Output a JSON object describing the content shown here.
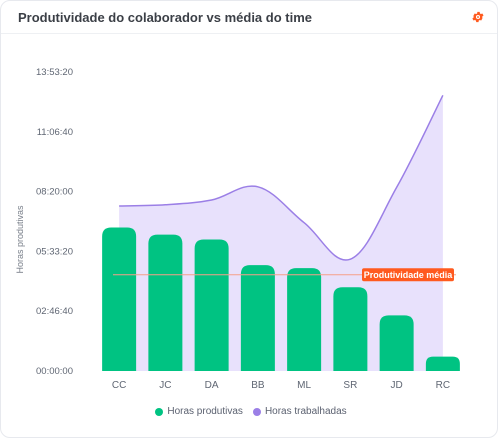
{
  "header": {
    "title": "Produtividade do colaborador vs média do time",
    "settings_icon": "gear-icon"
  },
  "colors": {
    "productive": "#00c382",
    "worked_fill": "#e4dcfb",
    "worked_line": "#9b7fe6",
    "average_line": "#f5a08a",
    "average_badge": "#ff5a1f",
    "accent": "#ff5a1f"
  },
  "chart_data": {
    "type": "bar",
    "categories": [
      "CC",
      "JC",
      "DA",
      "BB",
      "ML",
      "SR",
      "JD",
      "RC"
    ],
    "ylabel": "Horas produtivas",
    "ylim": [
      0,
      50000
    ],
    "y_ticks": [
      {
        "value": 0,
        "label": "00:00:00"
      },
      {
        "value": 10000,
        "label": "02:46:40"
      },
      {
        "value": 20000,
        "label": "05:33:20"
      },
      {
        "value": 30000,
        "label": "08:20:00"
      },
      {
        "value": 40000,
        "label": "11:06:40"
      },
      {
        "value": 50000,
        "label": "13:53:20"
      }
    ],
    "series": [
      {
        "name": "Horas produtivas",
        "type": "bar",
        "values": [
          24000,
          22800,
          22000,
          17700,
          17200,
          14000,
          9300,
          2400
        ]
      },
      {
        "name": "Horas trabalhadas",
        "type": "area",
        "values": [
          27600,
          27800,
          28600,
          30800,
          24800,
          18700,
          30700,
          46100
        ]
      }
    ],
    "annotation": {
      "label": "Produtividade média",
      "value": 16100
    },
    "legend_position": "bottom"
  }
}
